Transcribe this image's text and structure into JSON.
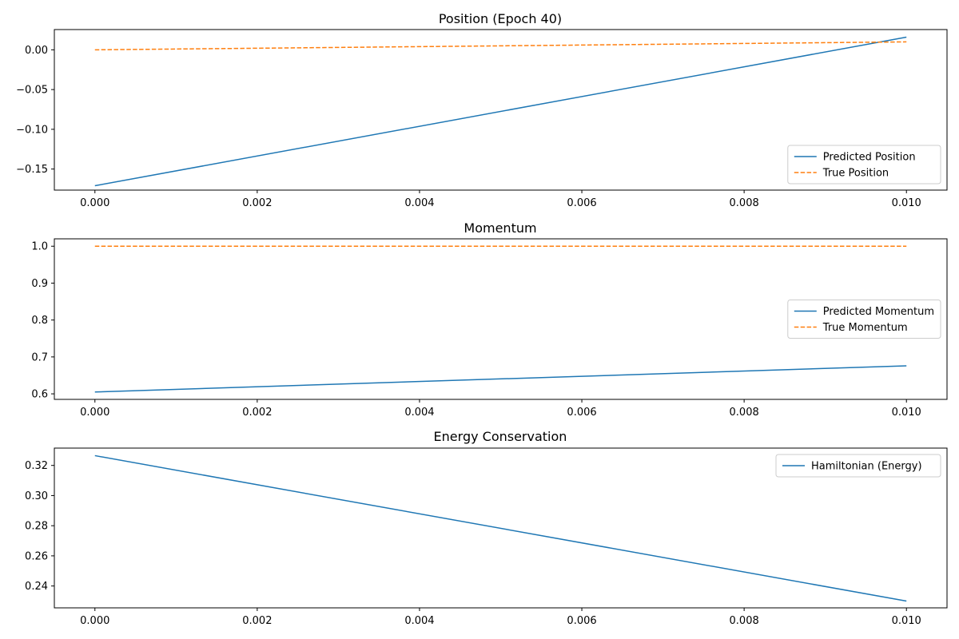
{
  "chart_data": [
    {
      "type": "line",
      "title": "Position (Epoch 40)",
      "xlabel": "",
      "ylabel": "",
      "xlim": [
        -0.0005,
        0.0105
      ],
      "ylim": [
        -0.1765,
        0.0255
      ],
      "xticks": [
        0.0,
        0.002,
        0.004,
        0.006,
        0.008,
        0.01
      ],
      "xtick_labels": [
        "0.000",
        "0.002",
        "0.004",
        "0.006",
        "0.008",
        "0.010"
      ],
      "yticks": [
        0.0,
        -0.05,
        -0.1,
        -0.15
      ],
      "ytick_labels": [
        "0.00",
        "−0.05",
        "−0.10",
        "−0.15"
      ],
      "grid": false,
      "legend_position": "lower-right",
      "series": [
        {
          "name": "Predicted Position",
          "color": "#1f77b4",
          "style": "solid",
          "x": [
            0.0,
            0.01
          ],
          "y": [
            -0.171,
            0.016
          ]
        },
        {
          "name": "True Position",
          "color": "#ff7f0e",
          "style": "dashed",
          "x": [
            0.0,
            0.01
          ],
          "y": [
            0.0,
            0.01
          ]
        }
      ]
    },
    {
      "type": "line",
      "title": "Momentum",
      "xlabel": "",
      "ylabel": "",
      "xlim": [
        -0.0005,
        0.0105
      ],
      "ylim": [
        0.585,
        1.02
      ],
      "xticks": [
        0.0,
        0.002,
        0.004,
        0.006,
        0.008,
        0.01
      ],
      "xtick_labels": [
        "0.000",
        "0.002",
        "0.004",
        "0.006",
        "0.008",
        "0.010"
      ],
      "yticks": [
        0.6,
        0.7,
        0.8,
        0.9,
        1.0
      ],
      "ytick_labels": [
        "0.6",
        "0.7",
        "0.8",
        "0.9",
        "1.0"
      ],
      "grid": false,
      "legend_position": "center-right",
      "series": [
        {
          "name": "Predicted Momentum",
          "color": "#1f77b4",
          "style": "solid",
          "x": [
            0.0,
            0.01
          ],
          "y": [
            0.605,
            0.676
          ]
        },
        {
          "name": "True Momentum",
          "color": "#ff7f0e",
          "style": "dashed",
          "x": [
            0.0,
            0.01
          ],
          "y": [
            1.0,
            1.0
          ]
        }
      ]
    },
    {
      "type": "line",
      "title": "Energy Conservation",
      "xlabel": "",
      "ylabel": "",
      "xlim": [
        -0.0005,
        0.0105
      ],
      "ylim": [
        0.2255,
        0.3315
      ],
      "xticks": [
        0.0,
        0.002,
        0.004,
        0.006,
        0.008,
        0.01
      ],
      "xtick_labels": [
        "0.000",
        "0.002",
        "0.004",
        "0.006",
        "0.008",
        "0.010"
      ],
      "yticks": [
        0.24,
        0.26,
        0.28,
        0.3,
        0.32
      ],
      "ytick_labels": [
        "0.24",
        "0.26",
        "0.28",
        "0.30",
        "0.32"
      ],
      "grid": false,
      "legend_position": "upper-right",
      "series": [
        {
          "name": "Hamiltonian (Energy)",
          "color": "#1f77b4",
          "style": "solid",
          "x": [
            0.0,
            0.01
          ],
          "y": [
            0.3265,
            0.23
          ]
        }
      ]
    }
  ]
}
